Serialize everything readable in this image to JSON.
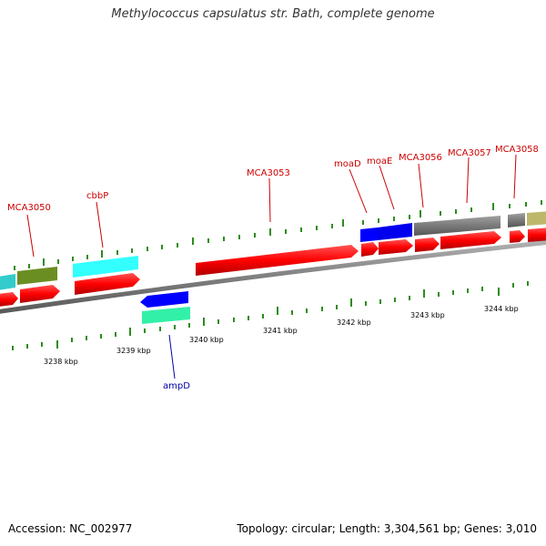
{
  "header": {
    "title": "Methylococcus capsulatus str. Bath, complete genome"
  },
  "footer": {
    "accession": "Accession: NC_002977",
    "summary": "Topology: circular; Length: 3,304,561 bp; Genes: 3,010"
  },
  "colors": {
    "backbone": "#7f7f7f",
    "tick": "#2e8b1e",
    "label_plus": "#cc0000",
    "label_minus": "#0000aa",
    "cds": "#ff0000",
    "cyan": "#33ffff",
    "olive": "#6b8e23",
    "blue": "#0000ff",
    "teal": "#33f0a8",
    "gray": "#777777",
    "khaki": "#bdb76b"
  },
  "scale": {
    "unit": "kbp",
    "labels": [
      "3238 kbp",
      "3239 kbp",
      "3240 kbp",
      "3241 kbp",
      "3242 kbp",
      "3243 kbp",
      "3244 kbp"
    ]
  },
  "gene_labels": [
    {
      "id": "MCA3050",
      "text": "MCA3050",
      "strand": "plus"
    },
    {
      "id": "cbbP",
      "text": "cbbP",
      "strand": "plus"
    },
    {
      "id": "MCA3053",
      "text": "MCA3053",
      "strand": "plus"
    },
    {
      "id": "moaD",
      "text": "moaD",
      "strand": "plus"
    },
    {
      "id": "moaE",
      "text": "moaE",
      "strand": "plus"
    },
    {
      "id": "MCA3056",
      "text": "MCA3056",
      "strand": "plus"
    },
    {
      "id": "MCA3057",
      "text": "MCA3057",
      "strand": "plus"
    },
    {
      "id": "MCA3058",
      "text": "MCA3058",
      "strand": "plus"
    },
    {
      "id": "ampD",
      "text": "ampD",
      "strand": "minus"
    }
  ]
}
